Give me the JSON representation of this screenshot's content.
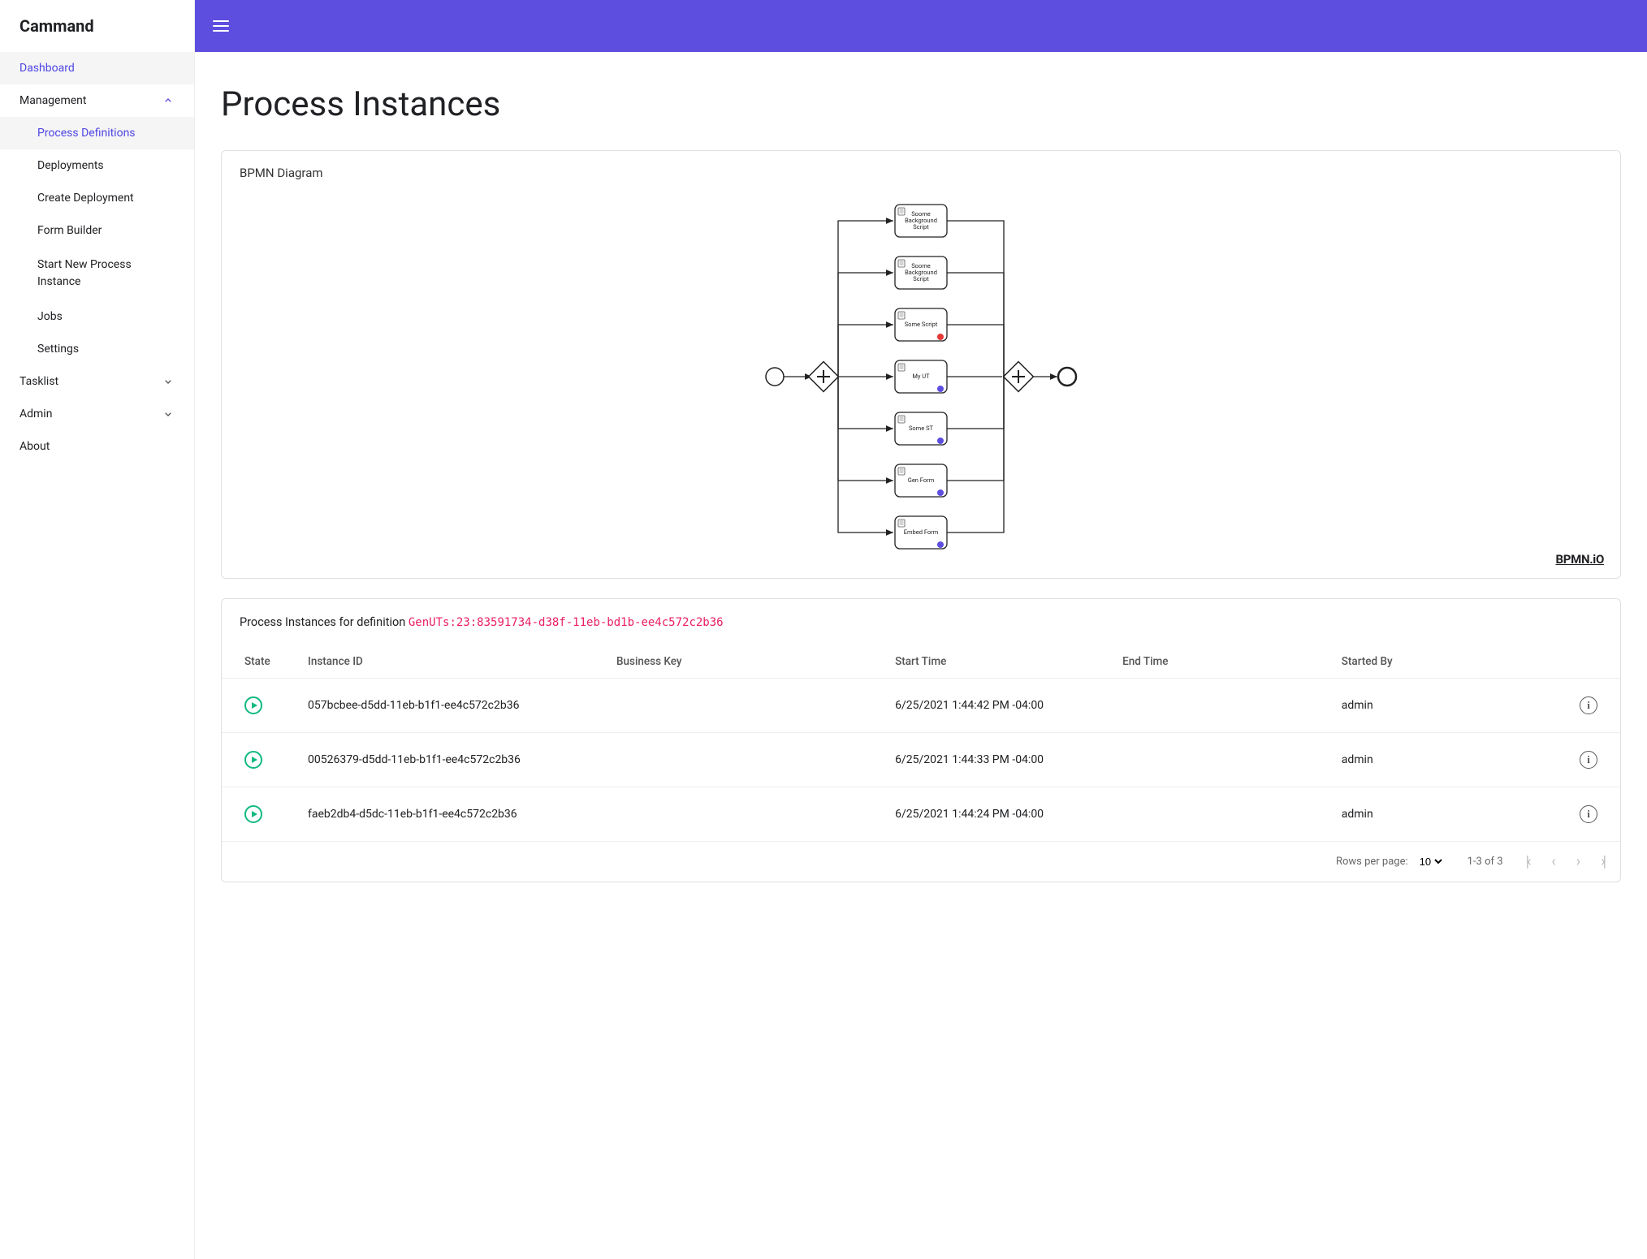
{
  "app": {
    "brand": "Cammand"
  },
  "sidebar": {
    "dashboard": "Dashboard",
    "management": "Management",
    "management_children": {
      "process_definitions": "Process Definitions",
      "deployments": "Deployments",
      "create_deployment": "Create Deployment",
      "form_builder": "Form Builder",
      "start_new_process": "Start New Process Instance",
      "jobs": "Jobs",
      "settings": "Settings"
    },
    "tasklist": "Tasklist",
    "admin": "Admin",
    "about": "About"
  },
  "page": {
    "title": "Process Instances",
    "diagram_card_title": "BPMN Diagram",
    "bpmn_logo": "BPMN.iO",
    "instances_prefix": "Process Instances for definition ",
    "definition_id": "GenUTs:23:83591734-d38f-11eb-bd1b-ee4c572c2b36"
  },
  "diagram": {
    "tasks": [
      {
        "label1": "Soome",
        "label2": "Background",
        "label3": "Script",
        "marker": null,
        "icon": "script"
      },
      {
        "label1": "Soome",
        "label2": "Background",
        "label3": "Script",
        "marker": null,
        "icon": "script"
      },
      {
        "label1": "Some Script",
        "label2": "",
        "label3": "",
        "marker": "#e53935",
        "icon": "script"
      },
      {
        "label1": "My UT",
        "label2": "",
        "label3": "",
        "marker": "#5e4ee0",
        "icon": "user"
      },
      {
        "label1": "Some ST",
        "label2": "",
        "label3": "",
        "marker": "#5e4ee0",
        "icon": "service"
      },
      {
        "label1": "Gen Form",
        "label2": "",
        "label3": "",
        "marker": "#5e4ee0",
        "icon": "user"
      },
      {
        "label1": "Embed Form",
        "label2": "",
        "label3": "",
        "marker": "#5e4ee0",
        "icon": "user"
      }
    ]
  },
  "table": {
    "columns": {
      "state": "State",
      "instance_id": "Instance ID",
      "business_key": "Business Key",
      "start_time": "Start Time",
      "end_time": "End Time",
      "started_by": "Started By"
    },
    "rows": [
      {
        "instance_id": "057bcbee-d5dd-11eb-b1f1-ee4c572c2b36",
        "business_key": "",
        "start_time": "6/25/2021 1:44:42 PM -04:00",
        "end_time": "",
        "started_by": "admin"
      },
      {
        "instance_id": "00526379-d5dd-11eb-b1f1-ee4c572c2b36",
        "business_key": "",
        "start_time": "6/25/2021 1:44:33 PM -04:00",
        "end_time": "",
        "started_by": "admin"
      },
      {
        "instance_id": "faeb2db4-d5dc-11eb-b1f1-ee4c572c2b36",
        "business_key": "",
        "start_time": "6/25/2021 1:44:24 PM -04:00",
        "end_time": "",
        "started_by": "admin"
      }
    ]
  },
  "paginator": {
    "rows_per_page_label": "Rows per page:",
    "rows_per_page_value": "10",
    "range": "1-3 of 3"
  },
  "colors": {
    "accent": "#5e4ee0",
    "running": "#10b981",
    "pink": "#e91e63"
  }
}
